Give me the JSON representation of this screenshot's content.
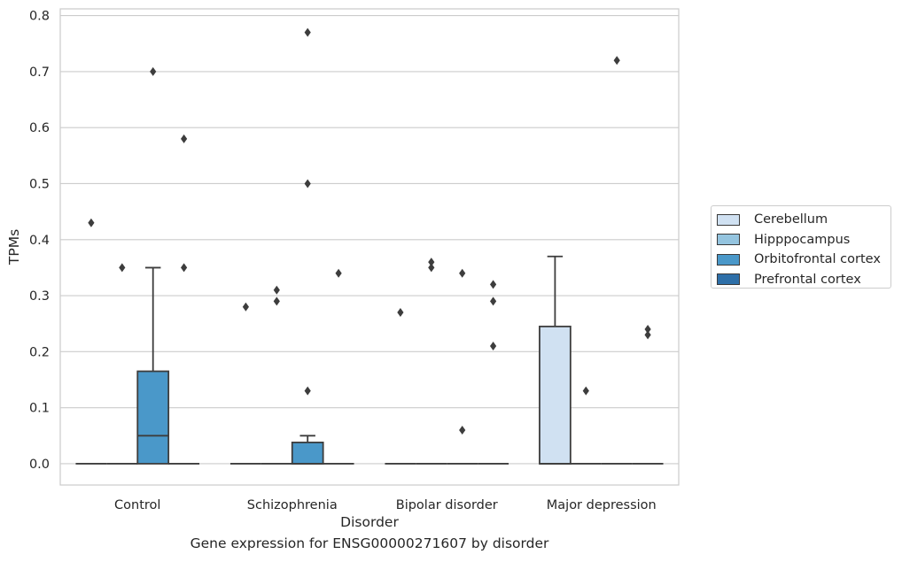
{
  "chart_data": {
    "type": "box",
    "caption": "Gene expression for ENSG00000271607 by disorder",
    "xlabel": "Disorder",
    "ylabel": "TPMs",
    "ylim": [
      -0.038,
      0.812
    ],
    "yticks": [
      "0.0",
      "0.1",
      "0.2",
      "0.3",
      "0.4",
      "0.5",
      "0.6",
      "0.7",
      "0.8"
    ],
    "ytick_values": [
      0,
      0.1,
      0.2,
      0.3,
      0.4,
      0.5,
      0.6,
      0.7,
      0.8
    ],
    "grid": true,
    "legend_position": "right",
    "categories": [
      "Control",
      "Schizophrenia",
      "Bipolar disorder",
      "Major depression"
    ],
    "series": [
      {
        "name": "Cerebellum",
        "color": "#d0e1f2",
        "boxes": [
          {
            "q1": 0,
            "median": 0,
            "q3": 0,
            "whisker_low": 0,
            "whisker_high": 0,
            "outliers": [
              0.43
            ]
          },
          {
            "q1": 0,
            "median": 0,
            "q3": 0,
            "whisker_low": 0,
            "whisker_high": 0,
            "outliers": [
              0.28
            ]
          },
          {
            "q1": 0,
            "median": 0,
            "q3": 0,
            "whisker_low": 0,
            "whisker_high": 0,
            "outliers": [
              0.27
            ]
          },
          {
            "q1": 0,
            "median": 0,
            "q3": 0.245,
            "whisker_low": 0,
            "whisker_high": 0.37,
            "outliers": []
          }
        ]
      },
      {
        "name": "Hipppocampus",
        "color": "#94c4df",
        "boxes": [
          {
            "q1": 0,
            "median": 0,
            "q3": 0,
            "whisker_low": 0,
            "whisker_high": 0,
            "outliers": [
              0.35
            ]
          },
          {
            "q1": 0,
            "median": 0,
            "q3": 0,
            "whisker_low": 0,
            "whisker_high": 0,
            "outliers": [
              0.31,
              0.29
            ]
          },
          {
            "q1": 0,
            "median": 0,
            "q3": 0,
            "whisker_low": 0,
            "whisker_high": 0,
            "outliers": [
              0.36,
              0.35
            ]
          },
          {
            "q1": 0,
            "median": 0,
            "q3": 0,
            "whisker_low": 0,
            "whisker_high": 0,
            "outliers": [
              0.13
            ]
          }
        ]
      },
      {
        "name": "Orbitofrontal cortex",
        "color": "#4a98c9",
        "boxes": [
          {
            "q1": 0,
            "median": 0.05,
            "q3": 0.165,
            "whisker_low": 0,
            "whisker_high": 0.35,
            "outliers": [
              0.7
            ]
          },
          {
            "q1": 0,
            "median": 0,
            "q3": 0.038,
            "whisker_low": 0,
            "whisker_high": 0.05,
            "outliers": [
              0.77,
              0.5,
              0.13
            ]
          },
          {
            "q1": 0,
            "median": 0,
            "q3": 0,
            "whisker_low": 0,
            "whisker_high": 0,
            "outliers": [
              0.34,
              0.06
            ]
          },
          {
            "q1": 0,
            "median": 0,
            "q3": 0,
            "whisker_low": 0,
            "whisker_high": 0,
            "outliers": [
              0.72
            ]
          }
        ]
      },
      {
        "name": "Prefrontal cortex",
        "color": "#2e6fa8",
        "boxes": [
          {
            "q1": 0,
            "median": 0,
            "q3": 0,
            "whisker_low": 0,
            "whisker_high": 0,
            "outliers": [
              0.58,
              0.35
            ]
          },
          {
            "q1": 0,
            "median": 0,
            "q3": 0,
            "whisker_low": 0,
            "whisker_high": 0,
            "outliers": [
              0.34
            ]
          },
          {
            "q1": 0,
            "median": 0,
            "q3": 0,
            "whisker_low": 0,
            "whisker_high": 0,
            "outliers": [
              0.32,
              0.29,
              0.21
            ]
          },
          {
            "q1": 0,
            "median": 0,
            "q3": 0,
            "whisker_low": 0,
            "whisker_high": 0,
            "outliers": [
              0.24,
              0.23
            ]
          }
        ]
      }
    ]
  },
  "legend": {
    "items": [
      {
        "label": "Cerebellum",
        "color": "#d0e1f2"
      },
      {
        "label": "Hipppocampus",
        "color": "#94c4df"
      },
      {
        "label": "Orbitofrontal cortex",
        "color": "#4a98c9"
      },
      {
        "label": "Prefrontal cortex",
        "color": "#2e6fa8"
      }
    ]
  }
}
